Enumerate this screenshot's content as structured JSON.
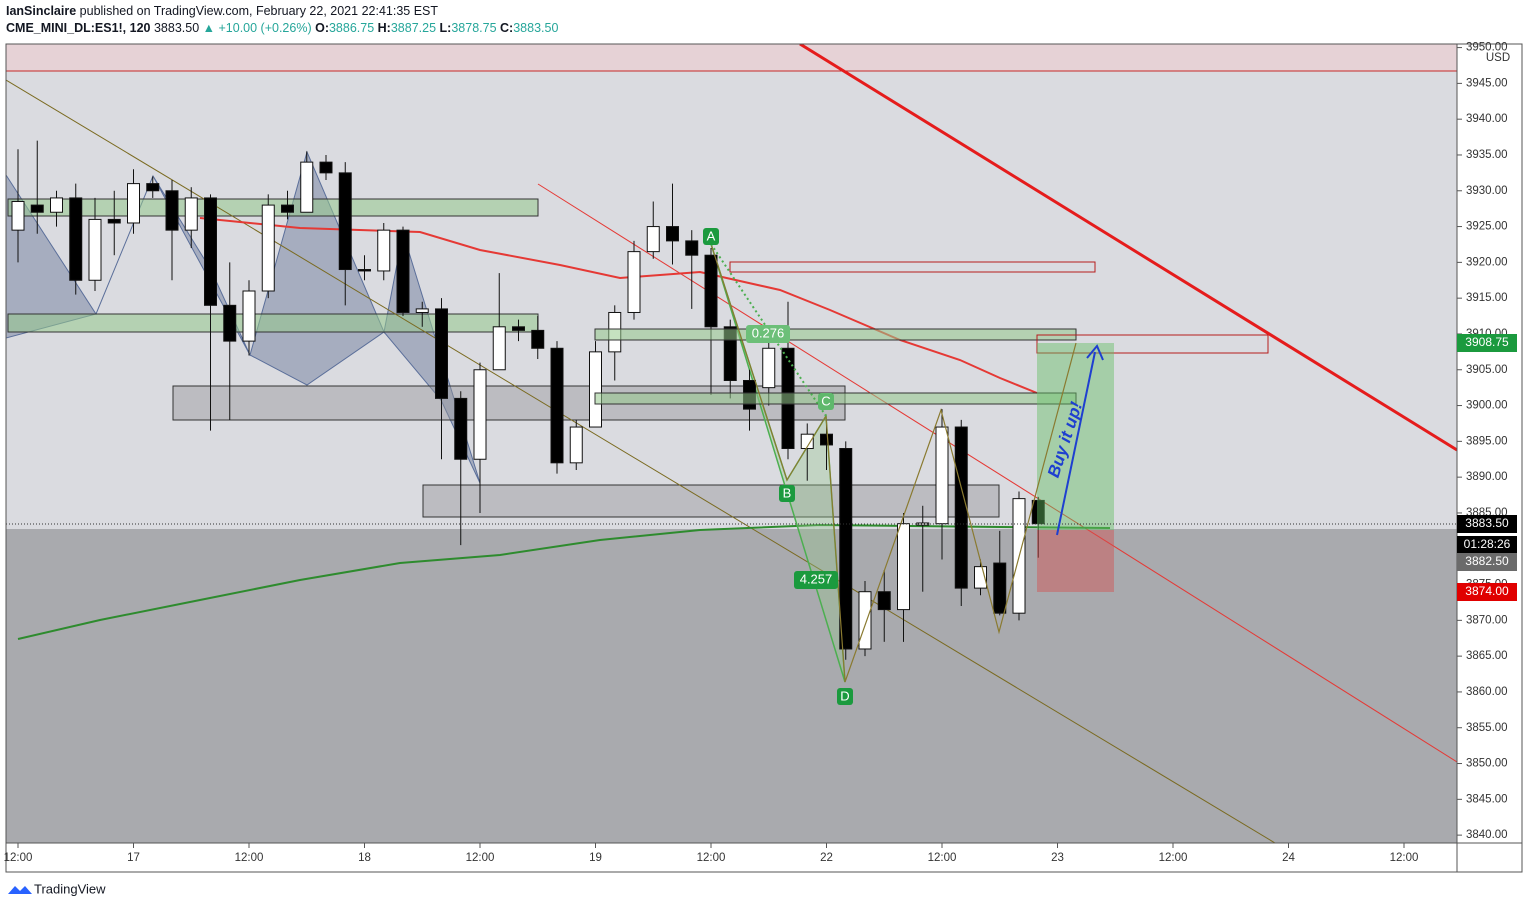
{
  "header": {
    "author": "IanSinclaire",
    "published": "published on TradingView.com, February 22, 2021 22:41:35 EST",
    "symbol": "CME_MINI_DL:ES1!, 120",
    "last": "3883.50",
    "change": "▲ +10.00 (+0.26%)",
    "o_label": "O:",
    "o": "3886.75",
    "h_label": "H:",
    "h": "3887.25",
    "l_label": "L:",
    "l": "3878.75",
    "c_label": "C:",
    "c": "3883.50"
  },
  "chart_data": {
    "type": "candlestick",
    "up_color": "#ffffff",
    "down_color": "#000000",
    "currency": "USD",
    "categories": [
      "12:00",
      null,
      null,
      null,
      null,
      null,
      "17",
      null,
      null,
      null,
      null,
      null,
      "12:00",
      null,
      null,
      null,
      null,
      null,
      "18",
      null,
      null,
      null,
      null,
      null,
      "12:00",
      null,
      null,
      null,
      null,
      null,
      "19",
      null,
      null,
      null,
      null,
      null,
      "12:00",
      null,
      null,
      null,
      null,
      null,
      "22",
      null,
      null,
      null,
      null,
      null,
      "12:00",
      null,
      null,
      null,
      null,
      null,
      "23",
      null,
      null,
      null,
      null,
      null,
      "12:00",
      null,
      null,
      null,
      null,
      null,
      "24",
      null,
      null,
      null,
      null,
      null,
      "12:00",
      null,
      null
    ],
    "open": [
      3924.5,
      3928,
      3927,
      3929,
      3917.5,
      3926,
      3925.5,
      3931,
      3930,
      3924.5,
      3929,
      3914,
      3909,
      3916,
      3928,
      3927,
      3934,
      3932.5,
      3919,
      3918.8,
      3924.5,
      3913,
      3913.5,
      3901,
      3892.5,
      3905,
      3911,
      3910.5,
      3908,
      3892,
      3897,
      3907.5,
      3913,
      3921.5,
      3925,
      3923,
      3921,
      3911,
      3903.5,
      3902.5,
      3908,
      3894,
      3896,
      3894,
      3866,
      3874,
      3871.5,
      3883.3,
      3883.5,
      3897,
      3874.5,
      3878,
      3871,
      3886.75,
      null,
      null,
      null,
      null,
      null,
      null,
      null,
      null,
      null,
      null,
      null,
      null,
      null,
      null,
      null,
      null,
      null,
      null,
      null,
      null,
      null
    ],
    "high": [
      3935.8,
      3937,
      3930,
      3931,
      3929,
      3930,
      3933,
      3932,
      3931.5,
      3930.5,
      3929.5,
      3920,
      3917.5,
      3929.5,
      3930,
      3935.5,
      3935,
      3934,
      3921,
      3925.5,
      3925,
      3914.5,
      3915,
      3902,
      3906,
      3918.5,
      3912,
      3912.5,
      3909,
      3898,
      3909,
      3914,
      3923,
      3928.5,
      3931,
      3924.5,
      3922,
      3912,
      3905,
      3910,
      3914.5,
      3897.5,
      3898,
      3895,
      3875.5,
      3877,
      3885,
      3886,
      3899.5,
      3898,
      3878.5,
      3882.5,
      3888,
      3887.25,
      null,
      null,
      null,
      null,
      null,
      null,
      null,
      null,
      null,
      null,
      null,
      null,
      null,
      null,
      null,
      null,
      null,
      null,
      null,
      null,
      null
    ],
    "low": [
      3920,
      3924,
      3925,
      3915.5,
      3916,
      3921,
      3924,
      3929,
      3917.5,
      3922,
      3896.5,
      3898,
      3907,
      3915,
      3926,
      3927,
      3931.5,
      3914,
      3917.5,
      3917.5,
      3912.5,
      3911,
      3892.5,
      3880.5,
      3885,
      3905,
      3909,
      3906.5,
      3890.5,
      3891,
      3897,
      3903.5,
      3912,
      3920.5,
      3919.7,
      3913.5,
      3901.5,
      3901,
      3896.5,
      3900,
      3892.5,
      3889.5,
      3891,
      3864.5,
      3865,
      3867,
      3867,
      3874,
      3878.5,
      3872,
      3873.5,
      3870.7,
      3870,
      3878.75,
      null,
      null,
      null,
      null,
      null,
      null,
      null,
      null,
      null,
      null,
      null,
      null,
      null,
      null,
      null,
      null,
      null,
      null,
      null,
      null,
      null
    ],
    "close": [
      3928.5,
      3927,
      3929,
      3917.5,
      3926,
      3925.5,
      3931,
      3930,
      3924.5,
      3929,
      3914,
      3909,
      3916,
      3928,
      3927,
      3934,
      3932.5,
      3919,
      3918.8,
      3924.5,
      3913,
      3913.5,
      3901,
      3892.5,
      3905,
      3911,
      3910.5,
      3908,
      3892,
      3897,
      3907.5,
      3913,
      3921.5,
      3925,
      3923,
      3921,
      3911,
      3903.5,
      3899.5,
      3908,
      3894,
      3896,
      3894.5,
      3866,
      3874,
      3871.5,
      3883.5,
      3883.6,
      3897,
      3874.5,
      3877.5,
      3871,
      3887,
      3883.5,
      null,
      null,
      null,
      null,
      null,
      null,
      null,
      null,
      null,
      null,
      null,
      null,
      null,
      null,
      null,
      null,
      null,
      null,
      null,
      null,
      null
    ],
    "ylim": [
      3838.9,
      3950.5
    ],
    "yticks": [
      {
        "value": 3840,
        "label": "3840.00"
      },
      {
        "value": 3845,
        "label": "3845.00"
      },
      {
        "value": 3850,
        "label": "3850.00"
      },
      {
        "value": 3855,
        "label": "3855.00"
      },
      {
        "value": 3860,
        "label": "3860.00"
      },
      {
        "value": 3865,
        "label": "3865.00"
      },
      {
        "value": 3870,
        "label": "3870.00"
      },
      {
        "value": 3875,
        "label": "3875.00"
      },
      {
        "value": 3880,
        "label": "3880.00"
      },
      {
        "value": 3885,
        "label": "3885.00"
      },
      {
        "value": 3890,
        "label": "3890.00"
      },
      {
        "value": 3895,
        "label": "3895.00"
      },
      {
        "value": 3900,
        "label": "3900.00"
      },
      {
        "value": 3905,
        "label": "3905.00"
      },
      {
        "value": 3910,
        "label": "3910.00"
      },
      {
        "value": 3915,
        "label": "3915.00"
      },
      {
        "value": 3920,
        "label": "3920.00"
      },
      {
        "value": 3925,
        "label": "3925.00"
      },
      {
        "value": 3930,
        "label": "3930.00"
      },
      {
        "value": 3935,
        "label": "3935.00"
      },
      {
        "value": 3940,
        "label": "3940.00"
      },
      {
        "value": 3945,
        "label": "3945.00"
      },
      {
        "value": 3950,
        "label": "3950.00"
      }
    ],
    "annotations": [
      "A",
      "B",
      "C",
      "D",
      "0.276",
      "4.257",
      "Buy it up!"
    ],
    "price_tags": [
      "3908.75",
      "3883.50",
      "01:28:26",
      "3882.50",
      "3874.00"
    ]
  },
  "footer": "TradingView"
}
